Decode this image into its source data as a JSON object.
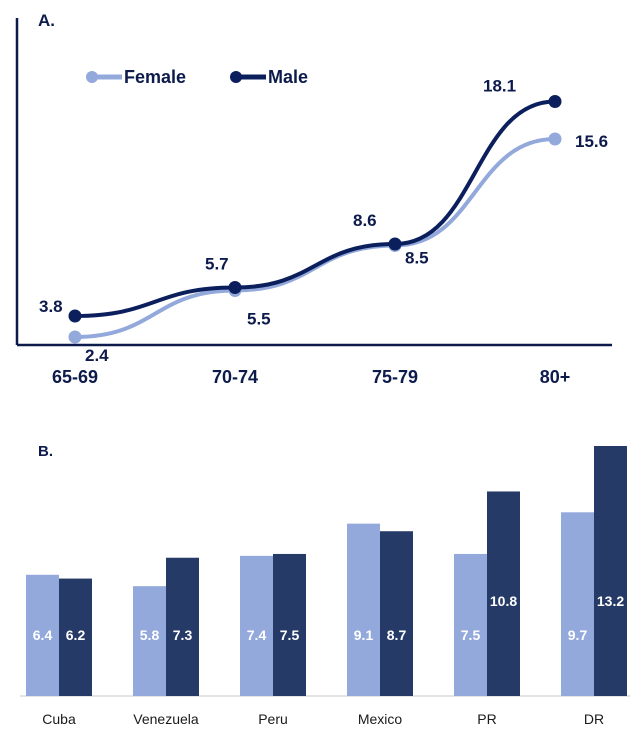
{
  "colors": {
    "female": "#93a9dc",
    "male": "#0b1f5c",
    "bar_female": "#93a9dc",
    "bar_male": "#253a66"
  },
  "chart_data": [
    {
      "panel": "A.",
      "type": "line",
      "categories": [
        "65-69",
        "70-74",
        "75-79",
        "80+"
      ],
      "series": [
        {
          "name": "Female",
          "values": [
            2.4,
            5.5,
            8.5,
            15.6
          ]
        },
        {
          "name": "Male",
          "values": [
            3.8,
            5.7,
            8.6,
            18.1
          ]
        }
      ],
      "ylim": [
        0,
        20
      ],
      "legend": "top-left",
      "grid": false
    },
    {
      "panel": "B.",
      "type": "bar",
      "categories": [
        "Cuba",
        "Venezuela",
        "Peru",
        "Mexico",
        "PR",
        "DR"
      ],
      "series": [
        {
          "values": [
            6.4,
            5.8,
            7.4,
            9.1,
            7.5,
            9.7
          ]
        },
        {
          "values": [
            6.2,
            7.3,
            7.5,
            8.7,
            10.8,
            13.2
          ]
        }
      ],
      "ylim": [
        0,
        13.5
      ],
      "grid": false
    }
  ]
}
